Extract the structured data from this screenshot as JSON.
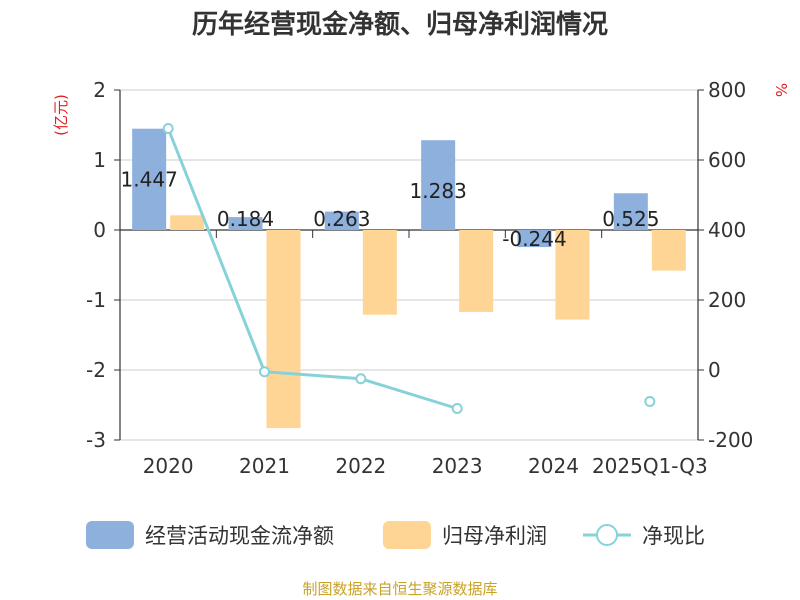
{
  "chart_data": {
    "type": "bar",
    "title": "历年经营现金净额、归母净利润情况",
    "categories": [
      "2020",
      "2021",
      "2022",
      "2023",
      "2024",
      "2025Q1-Q3"
    ],
    "y_left_label": "(亿元)",
    "y_left_lim": [
      -3,
      2
    ],
    "y_left_ticks": [
      -3,
      -2,
      -1,
      0,
      1,
      2
    ],
    "y_right_label": "%",
    "y_right_lim": [
      -200,
      800
    ],
    "y_right_ticks": [
      -200,
      0,
      200,
      400,
      600,
      800
    ],
    "grid": true,
    "legend_position": "bottom",
    "series": [
      {
        "name": "经营活动现金流净额",
        "kind": "bar",
        "axis": "left",
        "color": "#8eb0dc",
        "values": [
          1.447,
          0.184,
          0.263,
          1.283,
          -0.244,
          0.525
        ],
        "labels": [
          "1.447",
          "0.184",
          "0.263",
          "1.283",
          "-0.244",
          "0.525"
        ]
      },
      {
        "name": "归母净利润",
        "kind": "bar",
        "axis": "left",
        "color": "#fed594",
        "values": [
          0.21,
          -2.83,
          -1.21,
          -1.17,
          -1.28,
          -0.58
        ]
      },
      {
        "name": "净现比",
        "kind": "line",
        "axis": "right",
        "color": "#87d2d8",
        "values": [
          690,
          -5,
          -25,
          -110,
          null,
          -90
        ]
      }
    ]
  },
  "footer": {
    "source": "制图数据来自恒生聚源数据库"
  }
}
